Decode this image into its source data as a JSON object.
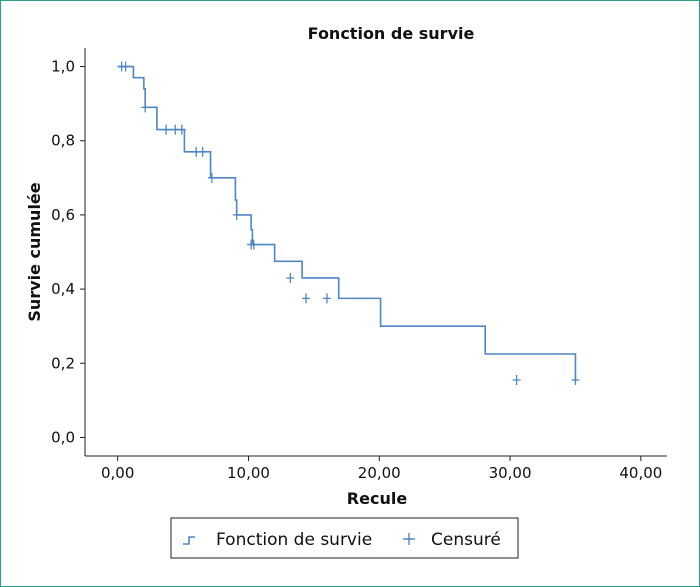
{
  "chart_data": {
    "type": "line",
    "subtype": "kaplan-meier-step",
    "title": "Fonction de survie",
    "xlabel": "Recule",
    "ylabel": "Survie cumulée",
    "xlim": [
      -2.5,
      42
    ],
    "ylim": [
      -0.05,
      1.05
    ],
    "x_ticks": [
      0,
      10,
      20,
      30,
      40
    ],
    "x_tick_labels": [
      "0,00",
      "10,00",
      "20,00",
      "30,00",
      "40,00"
    ],
    "y_ticks": [
      0,
      0.2,
      0.4,
      0.6,
      0.8,
      1.0
    ],
    "y_tick_labels": [
      "0,0",
      "0,2",
      "0,4",
      "0,6",
      "0,8",
      "1,0"
    ],
    "grid": false,
    "legend_position": "bottom",
    "color": "#4f86c6",
    "series": [
      {
        "name": "Fonction de survie",
        "x": [
          0,
          1.0,
          1.2,
          2.0,
          2.1,
          3.0,
          5.1,
          7.1,
          9.0,
          9.1,
          10.2,
          10.3,
          11.2,
          12.0,
          14.1,
          16.9,
          20.1,
          28.1,
          35.0
        ],
        "y": [
          1.0,
          1.0,
          0.97,
          0.94,
          0.89,
          0.83,
          0.77,
          0.7,
          0.64,
          0.6,
          0.56,
          0.52,
          0.52,
          0.475,
          0.43,
          0.375,
          0.3,
          0.225,
          0.155
        ]
      },
      {
        "name": "Censuré",
        "x": [
          0.3,
          0.6,
          2.1,
          3.7,
          4.4,
          4.9,
          6.0,
          6.5,
          7.2,
          9.1,
          10.2,
          10.4,
          13.2,
          14.4,
          16.0,
          30.5,
          35.0
        ],
        "y": [
          1.0,
          1.0,
          0.89,
          0.83,
          0.83,
          0.83,
          0.77,
          0.77,
          0.7,
          0.6,
          0.52,
          0.52,
          0.43,
          0.375,
          0.375,
          0.155,
          0.155
        ]
      }
    ]
  }
}
